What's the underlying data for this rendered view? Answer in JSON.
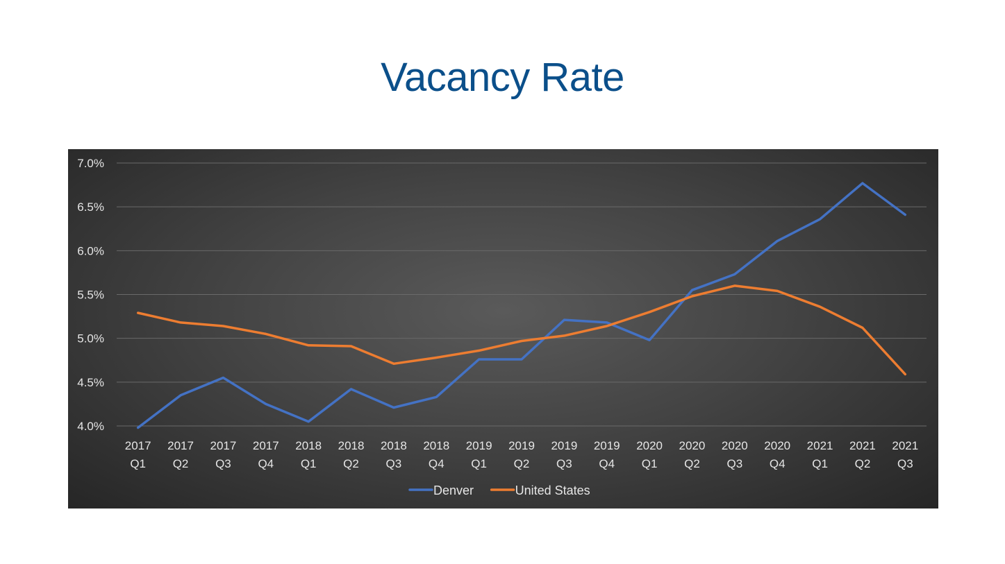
{
  "slide": {
    "title": "Vacancy Rate"
  },
  "colors": {
    "title": "#0b4f8a",
    "denver": "#4472c4",
    "united_states": "#ed7d31",
    "gridline": "#6a6a6a",
    "text": "#e6e6e6"
  },
  "chart_data": {
    "type": "line",
    "title": "",
    "xlabel": "",
    "ylabel": "",
    "grid": true,
    "legend_position": "bottom",
    "ylim": [
      4.0,
      7.0
    ],
    "ytick_values": [
      4.0,
      4.5,
      5.0,
      5.5,
      6.0,
      6.5,
      7.0
    ],
    "ytick_labels": [
      "4.0%",
      "4.5%",
      "5.0%",
      "5.5%",
      "6.0%",
      "6.5%",
      "7.0%"
    ],
    "categories": [
      [
        "2017",
        "Q1"
      ],
      [
        "2017",
        "Q2"
      ],
      [
        "2017",
        "Q3"
      ],
      [
        "2017",
        "Q4"
      ],
      [
        "2018",
        "Q1"
      ],
      [
        "2018",
        "Q2"
      ],
      [
        "2018",
        "Q3"
      ],
      [
        "2018",
        "Q4"
      ],
      [
        "2019",
        "Q1"
      ],
      [
        "2019",
        "Q2"
      ],
      [
        "2019",
        "Q3"
      ],
      [
        "2019",
        "Q4"
      ],
      [
        "2020",
        "Q1"
      ],
      [
        "2020",
        "Q2"
      ],
      [
        "2020",
        "Q3"
      ],
      [
        "2020",
        "Q4"
      ],
      [
        "2021",
        "Q1"
      ],
      [
        "2021",
        "Q2"
      ],
      [
        "2021",
        "Q3"
      ]
    ],
    "series": [
      {
        "name": "Denver",
        "color": "#4472c4",
        "values": [
          3.98,
          4.35,
          4.55,
          4.25,
          4.05,
          4.42,
          4.21,
          4.33,
          4.76,
          4.76,
          5.21,
          5.18,
          4.98,
          5.55,
          5.73,
          6.11,
          6.36,
          6.77,
          6.41
        ]
      },
      {
        "name": "United States",
        "color": "#ed7d31",
        "values": [
          5.29,
          5.18,
          5.14,
          5.05,
          4.92,
          4.91,
          4.71,
          4.78,
          4.86,
          4.97,
          5.03,
          5.14,
          5.3,
          5.48,
          5.6,
          5.54,
          5.36,
          5.12,
          4.59
        ]
      }
    ]
  }
}
